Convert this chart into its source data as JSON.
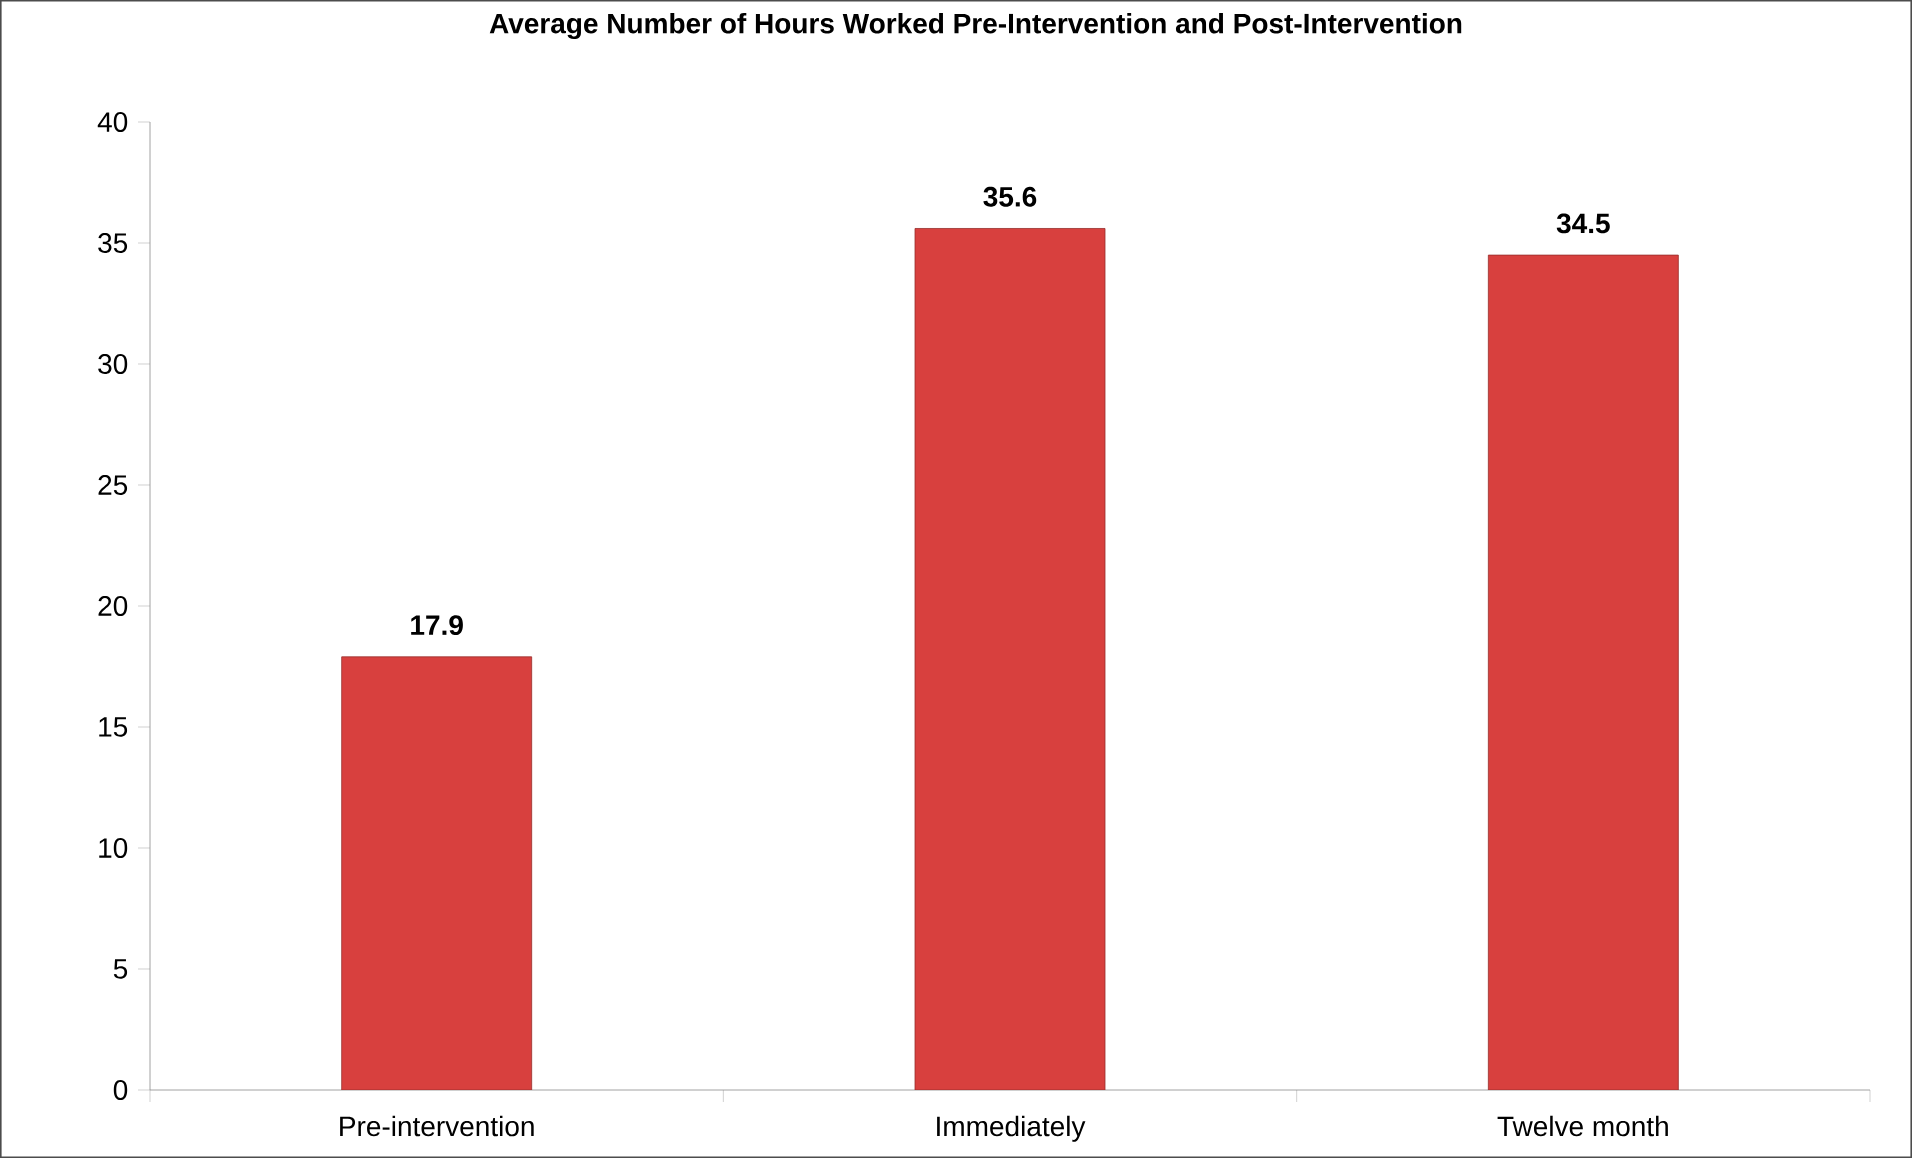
{
  "chart_data": {
    "type": "bar",
    "title": "Average Number of Hours Worked Pre-Intervention and Post-Intervention",
    "categories": [
      "Pre-intervention",
      "Immediately",
      "Twelve month"
    ],
    "values": [
      17.9,
      35.6,
      34.5
    ],
    "color": "#d8403e",
    "ylim": [
      0,
      40
    ],
    "yticks": [
      0,
      5,
      10,
      15,
      20,
      25,
      30,
      35,
      40
    ],
    "data_labels": true,
    "grid": false
  }
}
